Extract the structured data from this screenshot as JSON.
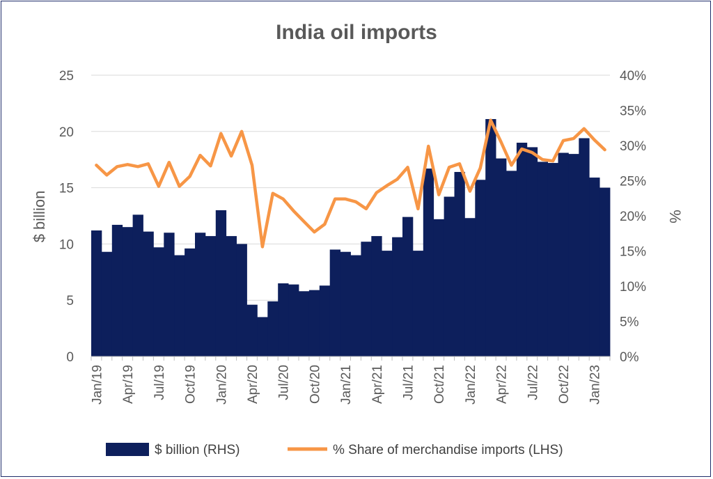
{
  "chart_data": {
    "type": "bar+line",
    "title": "India oil imports",
    "left_axis": {
      "label": "$ billion",
      "ylim": [
        0,
        25
      ],
      "ticks": [
        "0",
        "5",
        "10",
        "15",
        "20",
        "25"
      ]
    },
    "right_axis": {
      "label": "%",
      "ylim": [
        0,
        40
      ],
      "ticks": [
        "0%",
        "5%",
        "10%",
        "15%",
        "20%",
        "25%",
        "30%",
        "35%",
        "40%"
      ]
    },
    "x_tick_labels": [
      "Jan/19",
      "Apr/19",
      "Jul/19",
      "Oct/19",
      "Jan/20",
      "Apr/20",
      "Jul/20",
      "Oct/20",
      "Jan/21",
      "Apr/21",
      "Jul/21",
      "Oct/21",
      "Jan/22",
      "Apr/22",
      "Jul/22",
      "Oct/22",
      "Jan/23"
    ],
    "x_tick_every": 3,
    "months": [
      "Jan/19",
      "Feb/19",
      "Mar/19",
      "Apr/19",
      "May/19",
      "Jun/19",
      "Jul/19",
      "Aug/19",
      "Sep/19",
      "Oct/19",
      "Nov/19",
      "Dec/19",
      "Jan/20",
      "Feb/20",
      "Mar/20",
      "Apr/20",
      "May/20",
      "Jun/20",
      "Jul/20",
      "Aug/20",
      "Sep/20",
      "Oct/20",
      "Nov/20",
      "Dec/20",
      "Jan/21",
      "Feb/21",
      "Mar/21",
      "Apr/21",
      "May/21",
      "Jun/21",
      "Jul/21",
      "Aug/21",
      "Sep/21",
      "Oct/21",
      "Nov/21",
      "Dec/21",
      "Jan/22",
      "Feb/22",
      "Mar/22",
      "Apr/22",
      "May/22",
      "Jun/22",
      "Jul/22",
      "Aug/22",
      "Sep/22",
      "Oct/22",
      "Nov/22",
      "Dec/22",
      "Jan/23",
      "Feb/23"
    ],
    "series": [
      {
        "name": "$ billion (RHS)",
        "type": "bar",
        "axis": "left",
        "color": "#0d1f5c",
        "values": [
          11.2,
          9.3,
          11.7,
          11.5,
          12.6,
          11.1,
          9.7,
          11.0,
          9.0,
          9.6,
          11.0,
          10.7,
          13.0,
          10.7,
          10.0,
          4.6,
          3.5,
          4.9,
          6.5,
          6.4,
          5.8,
          5.9,
          6.3,
          9.5,
          9.3,
          9.0,
          10.2,
          10.7,
          9.4,
          10.6,
          12.4,
          9.4,
          16.7,
          12.2,
          14.2,
          16.4,
          12.3,
          15.7,
          21.1,
          17.6,
          16.5,
          19.0,
          18.6,
          17.3,
          17.2,
          18.1,
          18.0,
          19.4,
          15.9,
          15.0
        ]
      },
      {
        "name": "% Share of merchandise imports (LHS)",
        "type": "line",
        "axis": "right",
        "color": "#f79646",
        "values": [
          27.2,
          25.8,
          27.0,
          27.3,
          27.0,
          27.4,
          24.2,
          27.6,
          24.2,
          25.6,
          28.6,
          27.1,
          31.7,
          28.5,
          32.0,
          27.2,
          15.6,
          23.2,
          22.4,
          20.7,
          19.2,
          17.7,
          18.8,
          22.4,
          22.4,
          22.0,
          21.0,
          23.3,
          24.3,
          25.2,
          26.9,
          21.0,
          29.9,
          23.0,
          26.9,
          27.4,
          23.5,
          26.8,
          33.6,
          30.5,
          27.2,
          29.5,
          29.0,
          28.0,
          27.8,
          30.7,
          31.0,
          32.4,
          30.8,
          29.4
        ]
      }
    ],
    "legend": {
      "placement": "bottom"
    },
    "grid": true
  }
}
